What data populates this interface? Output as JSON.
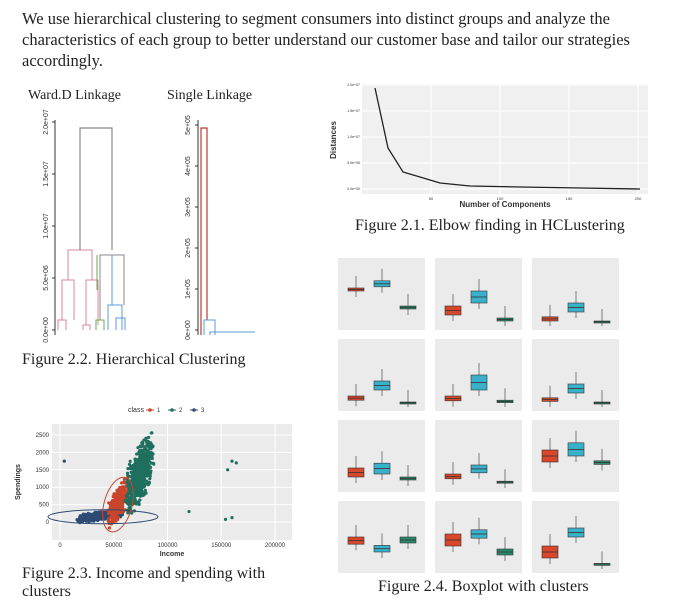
{
  "intro": "We use hierarchical clustering to segment consumers into distinct groups and analyze the characteristics of each group to better understand our customer base and tailor our strategies accordingly.",
  "figure_2_2": {
    "ward": {
      "title": "Ward.D Linkage",
      "yticks": [
        "0.0e+00",
        "5.0e+06",
        "1.0e+07",
        "1.5e+07",
        "2.0e+07"
      ]
    },
    "single": {
      "title": "Single Linkage",
      "yticks": [
        "0e+00",
        "1e+05",
        "2e+05",
        "3e+05",
        "4e+05",
        "5e+05"
      ]
    },
    "caption": "Figure 2.2. Hierarchical Clustering"
  },
  "figure_2_1": {
    "ylabel": "Distances",
    "xlabel": "Number of Components",
    "yticks": [
      "0.0e+00",
      "5.0e+06",
      "1.0e+07",
      "1.5e+07",
      "2.0e+07"
    ],
    "xticks": [
      "50",
      "100",
      "150",
      "200"
    ],
    "caption": "Figure 2.1. Elbow finding in HCLustering"
  },
  "figure_2_3": {
    "legend_title": "class",
    "legend": [
      "1",
      "2",
      "3"
    ],
    "xlabel": "Income",
    "ylabel": "Spendings",
    "xticks": [
      "0",
      "50000",
      "100000",
      "150000",
      "200000"
    ],
    "yticks": [
      "0",
      "500",
      "1000",
      "1500",
      "2000",
      "2500"
    ],
    "caption": "Figure 2.3. Income and spending with clusters"
  },
  "figure_2_4": {
    "caption": "Figure 2.4. Boxplot with clusters"
  }
}
